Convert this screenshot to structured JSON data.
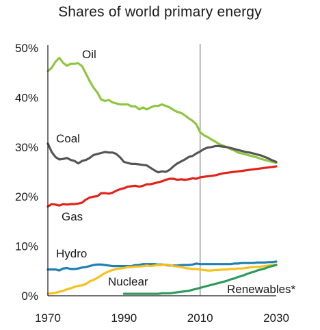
{
  "chart_data": {
    "type": "line",
    "title": "Shares of world primary energy",
    "xlabel": "",
    "ylabel": "",
    "xlim": [
      1970,
      2030
    ],
    "ylim": [
      0,
      50
    ],
    "x_ticks": [
      1970,
      1990,
      2010,
      2030
    ],
    "x_tick_labels": [
      "1970",
      "1990",
      "2010",
      "2030"
    ],
    "y_ticks": [
      0,
      10,
      20,
      30,
      40,
      50
    ],
    "y_tick_labels": [
      "0%",
      "10%",
      "20%",
      "30%",
      "40%",
      "50%"
    ],
    "divider_year": 2010,
    "grid": false,
    "legend": "direct labels",
    "series": [
      {
        "name": "Oil",
        "color": "#8dc63f",
        "x": [
          1970,
          1971,
          1972,
          1973,
          1974,
          1975,
          1976,
          1977,
          1978,
          1979,
          1980,
          1981,
          1982,
          1983,
          1984,
          1985,
          1986,
          1987,
          1988,
          1989,
          1990,
          1991,
          1992,
          1993,
          1994,
          1995,
          1996,
          1997,
          1998,
          1999,
          2000,
          2001,
          2002,
          2003,
          2004,
          2005,
          2006,
          2007,
          2008,
          2009,
          2010,
          2011,
          2012,
          2013,
          2014,
          2015,
          2016,
          2017,
          2018,
          2019,
          2020,
          2021,
          2022,
          2023,
          2024,
          2025,
          2026,
          2027,
          2028,
          2029,
          2030
        ],
        "values": [
          45.3,
          46.0,
          47.2,
          48.0,
          47.0,
          46.4,
          46.8,
          46.8,
          46.9,
          46.3,
          44.8,
          43.3,
          42.0,
          41.0,
          39.6,
          39.3,
          39.5,
          39.0,
          38.8,
          38.6,
          38.6,
          38.6,
          38.2,
          38.2,
          37.6,
          38.0,
          37.6,
          38.0,
          38.3,
          38.3,
          38.6,
          38.3,
          38.0,
          37.5,
          37.1,
          36.9,
          36.4,
          35.8,
          35.3,
          34.6,
          33.0,
          32.4,
          32.0,
          31.5,
          31.1,
          30.6,
          30.3,
          30.0,
          29.6,
          29.3,
          28.9,
          28.7,
          28.5,
          28.3,
          28.1,
          27.9,
          27.6,
          27.4,
          27.2,
          27.0,
          26.8
        ]
      },
      {
        "name": "Coal",
        "color": "#555555",
        "x": [
          1970,
          1971,
          1972,
          1973,
          1974,
          1975,
          1976,
          1977,
          1978,
          1979,
          1980,
          1981,
          1982,
          1983,
          1984,
          1985,
          1986,
          1987,
          1988,
          1989,
          1990,
          1991,
          1992,
          1993,
          1994,
          1995,
          1996,
          1997,
          1998,
          1999,
          2000,
          2001,
          2002,
          2003,
          2004,
          2005,
          2006,
          2007,
          2008,
          2009,
          2010,
          2011,
          2012,
          2013,
          2014,
          2015,
          2016,
          2017,
          2018,
          2019,
          2020,
          2021,
          2022,
          2023,
          2024,
          2025,
          2026,
          2027,
          2028,
          2029,
          2030
        ],
        "values": [
          30.7,
          29.0,
          28.0,
          27.5,
          27.6,
          27.8,
          27.4,
          27.2,
          26.7,
          27.2,
          27.4,
          27.8,
          28.4,
          28.6,
          28.8,
          29.0,
          28.9,
          28.9,
          28.6,
          27.9,
          27.0,
          26.8,
          26.6,
          26.6,
          26.5,
          26.4,
          26.3,
          25.8,
          25.3,
          24.9,
          25.1,
          25.0,
          25.4,
          26.1,
          26.7,
          27.1,
          27.5,
          28.0,
          28.2,
          28.7,
          29.1,
          29.6,
          29.9,
          30.0,
          30.2,
          30.2,
          30.1,
          30.0,
          29.8,
          29.6,
          29.4,
          29.2,
          29.0,
          28.9,
          28.7,
          28.5,
          28.3,
          28.0,
          27.7,
          27.3,
          27.0
        ]
      },
      {
        "name": "Gas",
        "color": "#e2231a",
        "x": [
          1970,
          1971,
          1972,
          1973,
          1974,
          1975,
          1976,
          1977,
          1978,
          1979,
          1980,
          1981,
          1982,
          1983,
          1984,
          1985,
          1986,
          1987,
          1988,
          1989,
          1990,
          1991,
          1992,
          1993,
          1994,
          1995,
          1996,
          1997,
          1998,
          1999,
          2000,
          2001,
          2002,
          2003,
          2004,
          2005,
          2006,
          2007,
          2008,
          2009,
          2010,
          2011,
          2012,
          2013,
          2014,
          2015,
          2016,
          2017,
          2018,
          2019,
          2020,
          2021,
          2022,
          2023,
          2024,
          2025,
          2026,
          2027,
          2028,
          2029,
          2030
        ],
        "values": [
          18.0,
          18.5,
          18.4,
          18.2,
          18.5,
          18.4,
          18.5,
          18.5,
          18.6,
          18.8,
          19.4,
          19.8,
          20.0,
          20.1,
          20.7,
          20.7,
          20.6,
          20.8,
          21.2,
          21.5,
          21.7,
          22.0,
          22.1,
          22.2,
          22.0,
          22.2,
          22.5,
          22.5,
          22.7,
          22.9,
          23.1,
          23.4,
          23.6,
          23.6,
          23.4,
          23.5,
          23.4,
          23.5,
          23.7,
          23.6,
          23.9,
          24.0,
          24.1,
          24.2,
          24.3,
          24.5,
          24.7,
          24.8,
          24.9,
          25.0,
          25.1,
          25.2,
          25.3,
          25.4,
          25.5,
          25.6,
          25.7,
          25.8,
          25.9,
          26.0,
          26.1
        ]
      },
      {
        "name": "Hydro",
        "color": "#1f7fb4",
        "x": [
          1970,
          1971,
          1972,
          1973,
          1974,
          1975,
          1976,
          1977,
          1978,
          1979,
          1980,
          1981,
          1982,
          1983,
          1984,
          1985,
          1986,
          1987,
          1988,
          1989,
          1990,
          1991,
          1992,
          1993,
          1994,
          1995,
          1996,
          1997,
          1998,
          1999,
          2000,
          2001,
          2002,
          2003,
          2004,
          2005,
          2006,
          2007,
          2008,
          2009,
          2010,
          2011,
          2012,
          2013,
          2014,
          2015,
          2016,
          2017,
          2018,
          2019,
          2020,
          2021,
          2022,
          2023,
          2024,
          2025,
          2026,
          2027,
          2028,
          2029,
          2030
        ],
        "values": [
          5.3,
          5.3,
          5.3,
          5.1,
          5.5,
          5.6,
          5.4,
          5.4,
          5.5,
          5.7,
          5.8,
          6.0,
          6.2,
          6.3,
          6.3,
          6.2,
          6.1,
          6.0,
          6.0,
          6.0,
          6.0,
          6.0,
          6.0,
          6.2,
          6.2,
          6.4,
          6.4,
          6.4,
          6.4,
          6.3,
          6.3,
          6.2,
          6.1,
          6.1,
          6.1,
          6.2,
          6.2,
          6.2,
          6.3,
          6.5,
          6.4,
          6.4,
          6.4,
          6.4,
          6.4,
          6.4,
          6.4,
          6.4,
          6.4,
          6.5,
          6.5,
          6.6,
          6.6,
          6.6,
          6.6,
          6.7,
          6.7,
          6.7,
          6.8,
          6.8,
          6.9
        ]
      },
      {
        "name": "Nuclear",
        "color": "#f7c11c",
        "x": [
          1970,
          1971,
          1972,
          1973,
          1974,
          1975,
          1976,
          1977,
          1978,
          1979,
          1980,
          1981,
          1982,
          1983,
          1984,
          1985,
          1986,
          1987,
          1988,
          1989,
          1990,
          1991,
          1992,
          1993,
          1994,
          1995,
          1996,
          1997,
          1998,
          1999,
          2000,
          2001,
          2002,
          2003,
          2004,
          2005,
          2006,
          2007,
          2008,
          2009,
          2010,
          2011,
          2012,
          2013,
          2014,
          2015,
          2016,
          2017,
          2018,
          2019,
          2020,
          2021,
          2022,
          2023,
          2024,
          2025,
          2026,
          2027,
          2028,
          2029,
          2030
        ],
        "values": [
          0.4,
          0.5,
          0.6,
          0.8,
          1.0,
          1.3,
          1.5,
          1.8,
          2.0,
          2.1,
          2.4,
          2.9,
          3.2,
          3.6,
          4.1,
          4.6,
          4.9,
          5.2,
          5.4,
          5.5,
          5.6,
          5.8,
          5.8,
          5.9,
          5.9,
          6.0,
          6.1,
          6.0,
          6.1,
          6.2,
          6.2,
          6.3,
          6.2,
          6.0,
          5.9,
          5.8,
          5.6,
          5.5,
          5.4,
          5.4,
          5.3,
          5.2,
          5.1,
          5.1,
          5.2,
          5.2,
          5.3,
          5.3,
          5.4,
          5.4,
          5.5,
          5.5,
          5.6,
          5.7,
          5.8,
          5.8,
          5.9,
          6.0,
          6.1,
          6.2,
          6.3
        ]
      },
      {
        "name": "Renewables*",
        "color": "#2e9a5b",
        "x": [
          1990,
          1991,
          1992,
          1993,
          1994,
          1995,
          1996,
          1997,
          1998,
          1999,
          2000,
          2001,
          2002,
          2003,
          2004,
          2005,
          2006,
          2007,
          2008,
          2009,
          2010,
          2011,
          2012,
          2013,
          2014,
          2015,
          2016,
          2017,
          2018,
          2019,
          2020,
          2021,
          2022,
          2023,
          2024,
          2025,
          2026,
          2027,
          2028,
          2029,
          2030
        ],
        "values": [
          0.4,
          0.4,
          0.4,
          0.4,
          0.4,
          0.4,
          0.4,
          0.4,
          0.4,
          0.4,
          0.5,
          0.5,
          0.5,
          0.6,
          0.7,
          0.8,
          0.9,
          1.0,
          1.2,
          1.4,
          1.6,
          1.8,
          2.0,
          2.2,
          2.4,
          2.6,
          2.8,
          3.0,
          3.3,
          3.5,
          3.8,
          4.0,
          4.3,
          4.6,
          4.8,
          5.1,
          5.3,
          5.5,
          5.8,
          6.0,
          6.2
        ]
      }
    ]
  }
}
